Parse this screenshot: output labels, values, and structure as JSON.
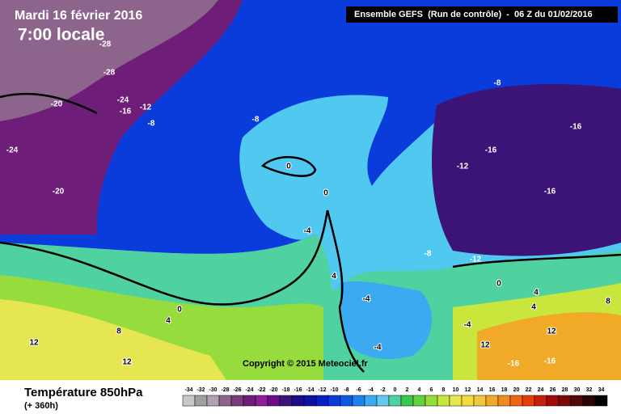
{
  "header": {
    "date": "Mardi 16 février 2016",
    "time": "7:00 locale",
    "model": "Ensemble GEFS  (Run de contrôle)  -  06 Z du 01/02/2016"
  },
  "footer": {
    "title": "Température 850hPa",
    "subtitle": "(+ 360h)",
    "copyright": "Copyright © 2015 Meteociel.fr"
  },
  "legend": {
    "labels": [
      -34,
      -32,
      -30,
      -28,
      -26,
      -24,
      -22,
      -20,
      -18,
      -16,
      -14,
      -12,
      -10,
      -8,
      -6,
      -4,
      -2,
      0,
      2,
      4,
      6,
      8,
      10,
      12,
      14,
      16,
      18,
      20,
      22,
      24,
      26,
      28,
      30,
      32,
      34
    ],
    "colors": [
      "#c8c8c8",
      "#a0a0a0",
      "#b4a0b4",
      "#8c648c",
      "#783c78",
      "#6e1e78",
      "#8c1e96",
      "#6e0a8c",
      "#3c1478",
      "#1e0a8c",
      "#0a14a0",
      "#0a1ec8",
      "#0a3cdc",
      "#0a5ae6",
      "#1e82f0",
      "#3caaf0",
      "#64c8f0",
      "#50d2a0",
      "#3cc850",
      "#64d23c",
      "#96dc3c",
      "#c8e63c",
      "#e6e650",
      "#f0dc3c",
      "#f0c83c",
      "#f0aa28",
      "#f08c1e",
      "#f06414",
      "#e63c0a",
      "#c81e0a",
      "#a00a0a",
      "#780a0a",
      "#500a0a",
      "#280505",
      "#000000"
    ]
  },
  "map": {
    "labels": [
      -28,
      -28,
      -24,
      -12,
      -16,
      -8,
      -20,
      -24,
      -20,
      -8,
      0,
      0,
      -4,
      4,
      0,
      4,
      8,
      12,
      12,
      -8,
      -16,
      -16,
      -12,
      -16,
      -8,
      -12,
      0,
      4,
      4,
      8,
      12,
      12,
      -16,
      -16,
      -4,
      -4,
      -4
    ]
  }
}
